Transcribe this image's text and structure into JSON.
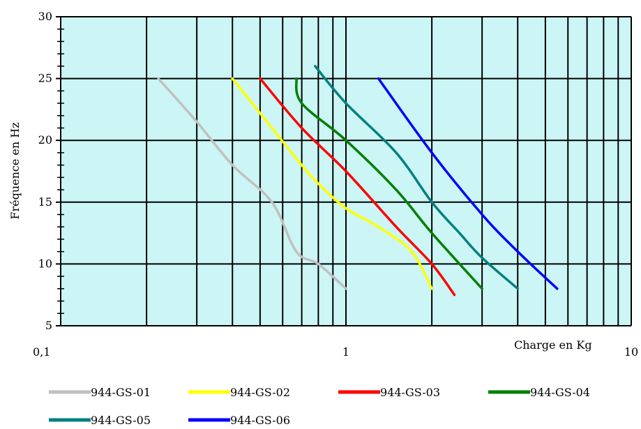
{
  "chart_data": {
    "type": "line",
    "title": "",
    "xlabel": "Charge en Kg",
    "ylabel": "Fréquence en Hz",
    "x_scale": "log",
    "xlim": [
      0.1,
      10
    ],
    "ylim": [
      5,
      30
    ],
    "x_tick_labels": [
      "0,1",
      "1",
      "10"
    ],
    "y_ticks": [
      5,
      10,
      15,
      20,
      25,
      30
    ],
    "grid": true,
    "plot_background": "#ccf5f5",
    "legend_position": "bottom",
    "series": [
      {
        "name": "944-GS-01",
        "color": "#c0c0c0",
        "points": [
          [
            0.22,
            25
          ],
          [
            0.3,
            21.5
          ],
          [
            0.4,
            18
          ],
          [
            0.55,
            15
          ],
          [
            0.67,
            11
          ],
          [
            0.8,
            10
          ],
          [
            1.0,
            8
          ]
        ]
      },
      {
        "name": "944-GS-02",
        "color": "#ffff00",
        "points": [
          [
            0.4,
            25
          ],
          [
            0.55,
            21
          ],
          [
            0.7,
            18
          ],
          [
            0.8,
            16.5
          ],
          [
            1.0,
            14.5
          ],
          [
            1.3,
            13
          ],
          [
            1.7,
            11
          ],
          [
            2.0,
            8
          ]
        ]
      },
      {
        "name": "944-GS-03",
        "color": "#ff0000",
        "points": [
          [
            0.5,
            25
          ],
          [
            0.7,
            21
          ],
          [
            1.0,
            17.5
          ],
          [
            1.5,
            13
          ],
          [
            2.0,
            10
          ],
          [
            2.4,
            7.5
          ]
        ]
      },
      {
        "name": "944-GS-04",
        "color": "#008000",
        "points": [
          [
            0.67,
            25
          ],
          [
            0.7,
            23
          ],
          [
            1.0,
            20
          ],
          [
            1.5,
            16
          ],
          [
            2.0,
            12.5
          ],
          [
            3.0,
            8
          ]
        ]
      },
      {
        "name": "944-GS-05",
        "color": "#008080",
        "points": [
          [
            0.78,
            26
          ],
          [
            1.0,
            23
          ],
          [
            1.5,
            19
          ],
          [
            2.0,
            15
          ],
          [
            2.5,
            12.5
          ],
          [
            3.0,
            10.5
          ],
          [
            4.0,
            8
          ]
        ]
      },
      {
        "name": "944-GS-06",
        "color": "#0000ff",
        "points": [
          [
            1.3,
            25
          ],
          [
            2.0,
            19
          ],
          [
            3.0,
            14
          ],
          [
            4.0,
            11
          ],
          [
            5.5,
            8
          ]
        ]
      }
    ]
  }
}
